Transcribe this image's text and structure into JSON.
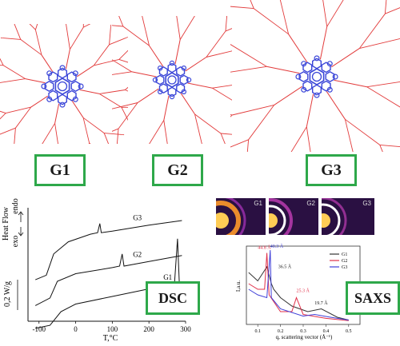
{
  "generations": [
    {
      "label": "G1"
    },
    {
      "label": "G2"
    },
    {
      "label": "G3"
    }
  ],
  "colors": {
    "dendron": "#e23b3b",
    "core": "#3b46d8",
    "label_border": "#2ea84a",
    "g1": "#333333",
    "g2": "#e0304a",
    "g3": "#4040d8"
  },
  "dsc": {
    "badge": "DSC",
    "ylabel_heat": "Heat Flow",
    "ylabel_endo": "endo",
    "ylabel_exo": "exo",
    "scale": "0,2 W/g",
    "xlabel": "T,°C",
    "curve_labels": [
      "G3",
      "G2",
      "G1"
    ]
  },
  "saxs": {
    "badge": "SAXS",
    "tile_labels": [
      "G1",
      "G2",
      "G3"
    ],
    "ylabel": "I,a.u.",
    "xlabel": "q, scattering vector (Å⁻¹)",
    "legend": [
      "G1",
      "G2",
      "G3"
    ],
    "peak_labels": [
      "44.8 Å",
      "40.3 Å",
      "36.5 Å",
      "25.3 Å",
      "19.7 Å"
    ]
  },
  "chart_data": [
    {
      "type": "line",
      "title": "",
      "xlabel": "T,°C",
      "ylabel": "Heat Flow",
      "xlim": [
        -130,
        300
      ],
      "x_ticks": [
        -100,
        0,
        100,
        200,
        300
      ],
      "series": [
        {
          "name": "G3",
          "x": [
            -110,
            -80,
            -60,
            -20,
            40,
            60,
            66,
            70,
            100,
            200,
            290
          ],
          "y": [
            1.05,
            1.2,
            1.9,
            2.3,
            2.55,
            2.6,
            2.9,
            2.6,
            2.65,
            2.85,
            3.0
          ]
        },
        {
          "name": "G2",
          "x": [
            -110,
            -70,
            -50,
            0,
            100,
            120,
            127,
            132,
            200,
            290
          ],
          "y": [
            0.2,
            0.45,
            1.0,
            1.25,
            1.45,
            1.5,
            1.9,
            1.5,
            1.65,
            1.85
          ]
        },
        {
          "name": "G1",
          "x": [
            -110,
            -70,
            -40,
            0,
            100,
            200,
            260,
            270,
            278,
            283,
            290
          ],
          "y": [
            -0.55,
            -0.45,
            0.0,
            0.25,
            0.5,
            0.75,
            0.85,
            1.0,
            2.4,
            0.9,
            0.9
          ]
        }
      ]
    },
    {
      "type": "line",
      "title": "",
      "xlabel": "q, scattering vector (Å⁻¹)",
      "ylabel": "I,a.u.",
      "xlim": [
        0.05,
        0.55
      ],
      "x_ticks": [
        0.1,
        0.2,
        0.3,
        0.4,
        0.5
      ],
      "series": [
        {
          "name": "G1",
          "x": [
            0.06,
            0.1,
            0.14,
            0.16,
            0.17,
            0.2,
            0.25,
            0.32,
            0.38,
            0.45,
            0.5
          ],
          "y": [
            0.9,
            0.75,
            1.0,
            0.7,
            0.6,
            0.45,
            0.3,
            0.2,
            0.25,
            0.1,
            0.05
          ]
        },
        {
          "name": "G2",
          "x": [
            0.06,
            0.1,
            0.13,
            0.14,
            0.15,
            0.2,
            0.25,
            0.27,
            0.3,
            0.4,
            0.5
          ],
          "y": [
            0.7,
            0.6,
            0.6,
            1.25,
            0.5,
            0.2,
            0.2,
            0.45,
            0.15,
            0.08,
            0.04
          ]
        },
        {
          "name": "G3",
          "x": [
            0.06,
            0.1,
            0.14,
            0.155,
            0.16,
            0.2,
            0.3,
            0.35,
            0.42,
            0.5
          ],
          "y": [
            0.6,
            0.5,
            0.45,
            1.3,
            0.45,
            0.25,
            0.12,
            0.15,
            0.1,
            0.05
          ]
        }
      ],
      "peak_labels": [
        "44.8 Å",
        "40.3 Å",
        "36.5 Å",
        "25.3 Å",
        "19.7 Å"
      ]
    }
  ]
}
